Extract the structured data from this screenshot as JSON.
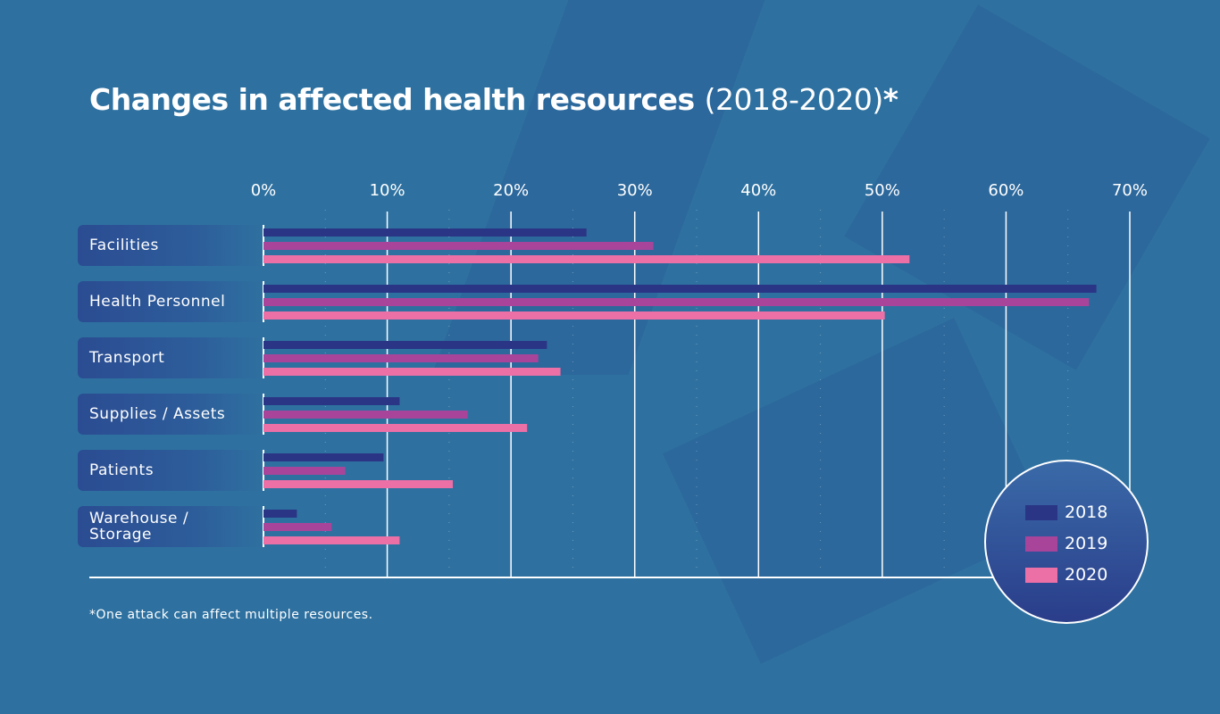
{
  "title": {
    "main": "Changes in affected health resources",
    "sub": "(2018-2020)",
    "mark": "*"
  },
  "footnote": "*One attack can affect multiple resources.",
  "chart_data": {
    "type": "bar",
    "orientation": "horizontal",
    "title": "Changes in affected health resources (2018-2020)*",
    "categories": [
      "Facilities",
      "Health Personnel",
      "Transport",
      "Supplies / Assets",
      "Patients",
      "Warehouse / Storage"
    ],
    "series": [
      {
        "name": "2018",
        "color": "#2a3585",
        "values": [
          26.1,
          67.3,
          22.9,
          11.0,
          9.7,
          2.7
        ]
      },
      {
        "name": "2019",
        "color": "#a8459a",
        "values": [
          31.5,
          66.7,
          22.2,
          16.5,
          6.6,
          5.5
        ]
      },
      {
        "name": "2020",
        "color": "#ec6fa6",
        "values": [
          52.2,
          50.2,
          24.0,
          21.3,
          15.3,
          11.0
        ]
      }
    ],
    "xlim": [
      0,
      70
    ],
    "xticks": [
      "0%",
      "10%",
      "20%",
      "30%",
      "40%",
      "50%",
      "60%",
      "70%"
    ],
    "grid": true,
    "legend": "bottom-right"
  }
}
